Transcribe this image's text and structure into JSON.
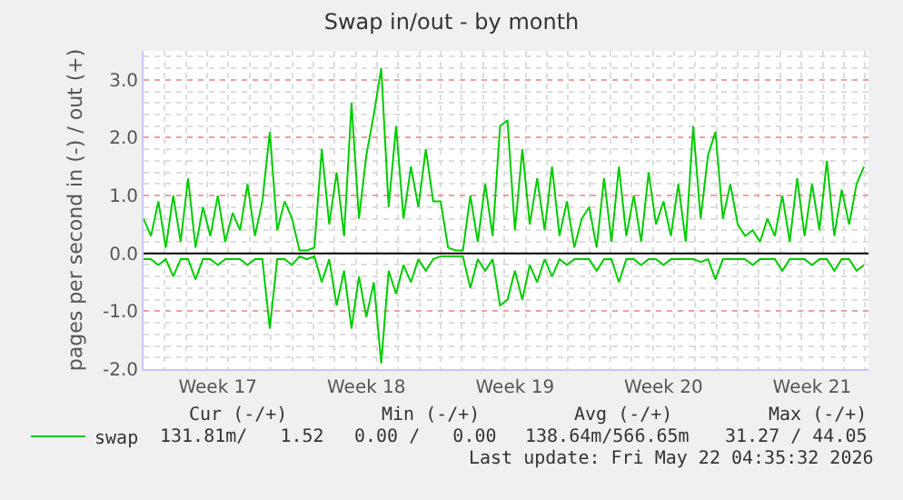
{
  "chart_data": {
    "type": "line",
    "title": "Swap in/out - by month",
    "ylabel": "pages per second in (-) / out (+)",
    "categories": [
      null,
      null,
      null,
      null,
      null,
      null,
      null,
      null,
      null,
      null,
      "Week 17",
      null,
      null,
      null,
      null,
      null,
      null,
      null,
      null,
      null,
      null,
      null,
      null,
      null,
      null,
      null,
      null,
      null,
      null,
      null,
      "Week 18",
      null,
      null,
      null,
      null,
      null,
      null,
      null,
      null,
      null,
      null,
      null,
      null,
      null,
      null,
      null,
      null,
      null,
      null,
      null,
      "Week 19",
      null,
      null,
      null,
      null,
      null,
      null,
      null,
      null,
      null,
      null,
      null,
      null,
      null,
      null,
      null,
      null,
      null,
      null,
      null,
      "Week 20",
      null,
      null,
      null,
      null,
      null,
      null,
      null,
      null,
      null,
      null,
      null,
      null,
      null,
      null,
      null,
      null,
      null,
      null,
      null,
      "Week 21",
      null,
      null,
      null,
      null,
      null,
      null,
      null
    ],
    "series": [
      {
        "name": "swap",
        "color": "#00cc00",
        "values": [
          0.6,
          0.3,
          0.9,
          0.1,
          1.0,
          0.2,
          1.3,
          0.1,
          0.8,
          0.3,
          1.0,
          0.2,
          0.7,
          0.4,
          1.2,
          0.3,
          0.9,
          2.1,
          0.4,
          0.9,
          0.6,
          0.05,
          0.05,
          0.1,
          1.8,
          0.5,
          1.4,
          0.3,
          2.6,
          0.6,
          1.7,
          2.4,
          3.2,
          0.8,
          2.2,
          0.6,
          1.5,
          0.8,
          1.8,
          0.9,
          0.9,
          0.1,
          0.05,
          0.05,
          1.0,
          0.2,
          1.2,
          0.3,
          2.2,
          2.3,
          0.4,
          1.8,
          0.5,
          1.3,
          0.4,
          1.5,
          0.3,
          0.9,
          0.1,
          0.6,
          0.8,
          0.1,
          1.3,
          0.2,
          1.5,
          0.3,
          1.0,
          0.2,
          1.4,
          0.5,
          0.9,
          0.3,
          1.2,
          0.2,
          2.2,
          0.6,
          1.7,
          2.1,
          0.6,
          1.2,
          0.5,
          0.3,
          0.4,
          0.2,
          0.6,
          0.3,
          1.0,
          0.2,
          1.3,
          0.3,
          1.2,
          0.4,
          1.6,
          0.3,
          1.1,
          0.5,
          1.2,
          1.5
        ]
      },
      {
        "color": "#00cc00",
        "values": [
          -0.1,
          -0.1,
          -0.2,
          -0.1,
          -0.4,
          -0.1,
          -0.1,
          -0.45,
          -0.1,
          -0.1,
          -0.2,
          -0.1,
          -0.1,
          -0.1,
          -0.2,
          -0.1,
          -0.1,
          -1.3,
          -0.1,
          -0.1,
          -0.2,
          -0.05,
          -0.1,
          -0.05,
          -0.5,
          -0.1,
          -0.9,
          -0.3,
          -1.3,
          -0.4,
          -1.1,
          -0.5,
          -1.9,
          -0.3,
          -0.7,
          -0.2,
          -0.5,
          -0.1,
          -0.3,
          -0.1,
          -0.05,
          -0.05,
          -0.05,
          -0.05,
          -0.6,
          -0.1,
          -0.3,
          -0.1,
          -0.9,
          -0.8,
          -0.3,
          -0.8,
          -0.2,
          -0.5,
          -0.1,
          -0.4,
          -0.1,
          -0.2,
          -0.1,
          -0.1,
          -0.1,
          -0.3,
          -0.1,
          -0.1,
          -0.5,
          -0.1,
          -0.1,
          -0.2,
          -0.1,
          -0.1,
          -0.2,
          -0.1,
          -0.1,
          -0.1,
          -0.1,
          -0.15,
          -0.1,
          -0.45,
          -0.1,
          -0.1,
          -0.1,
          -0.1,
          -0.2,
          -0.1,
          -0.1,
          -0.1,
          -0.3,
          -0.1,
          -0.1,
          -0.1,
          -0.2,
          -0.1,
          -0.1,
          -0.3,
          -0.1,
          -0.1,
          -0.3,
          -0.2
        ]
      }
    ],
    "ylim": [
      -2.0,
      3.5
    ],
    "yticks": [
      {
        "value": -2,
        "label": "-2.0"
      },
      {
        "value": -1,
        "label": "-1.0"
      },
      {
        "value": 0,
        "label": "0.0"
      },
      {
        "value": 1,
        "label": "1.0"
      },
      {
        "value": 2,
        "label": "2.0"
      },
      {
        "value": 3,
        "label": "3.0"
      }
    ],
    "ref_lines": [
      {
        "axis": "y",
        "value": 0,
        "color": "#000000"
      }
    ],
    "grid": true,
    "legend": "bottom left",
    "marker": "none",
    "line_style": "solid",
    "annotations": [
      "Cur (-/+)",
      "Min (-/+)",
      "Avg (-/+)",
      "Max (-/+)",
      "131.81m/   1.52",
      "0.00 /   0.00",
      "138.64m/566.65m",
      "31.27 / 44.05",
      "Last update: Fri May 22 04:35:32 2026"
    ]
  }
}
